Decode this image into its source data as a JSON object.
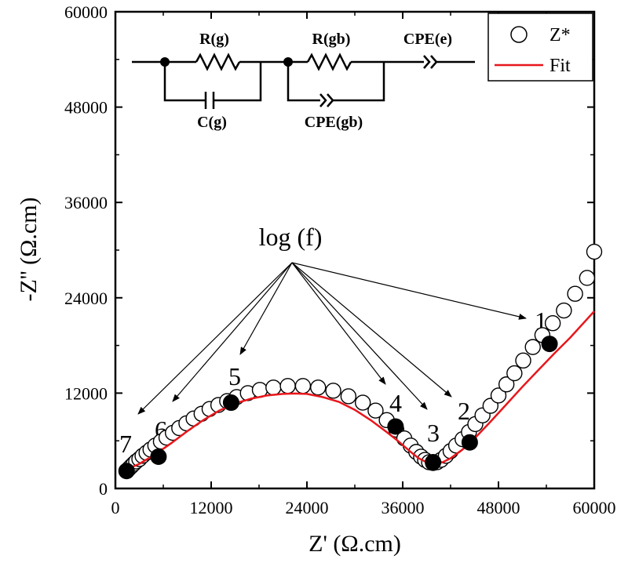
{
  "chart_data": {
    "type": "scatter",
    "xlabel": "Z' (Ω.cm)",
    "ylabel": "-Z'' (Ω.cm)",
    "xlim": [
      0,
      60000
    ],
    "ylim": [
      0,
      60000
    ],
    "xticks": [
      "0",
      "12000",
      "24000",
      "36000",
      "48000",
      "60000"
    ],
    "yticks": [
      "0",
      "12000",
      "24000",
      "36000",
      "48000",
      "60000"
    ],
    "grid": false,
    "legend": {
      "position": "top-right",
      "entries": [
        "Z*",
        "Fit"
      ]
    },
    "series": [
      {
        "name": "Z*",
        "style": "open-circles",
        "color": "#000000",
        "x": [
          1400,
          1700,
          2000,
          2300,
          2600,
          3000,
          3400,
          3900,
          4400,
          5000,
          5700,
          6400,
          7200,
          8000,
          8900,
          9800,
          10800,
          11800,
          12900,
          14000,
          15200,
          16600,
          18100,
          19800,
          21600,
          23500,
          25400,
          27300,
          29200,
          31000,
          32600,
          34000,
          35200,
          36200,
          37000,
          37700,
          38300,
          38800,
          39300,
          39800,
          40300,
          40800,
          41400,
          42000,
          42700,
          43500,
          44300,
          45100,
          46000,
          47000,
          48000,
          49000,
          50000,
          51100,
          52300,
          53500,
          54800,
          56200,
          57600,
          59100,
          60000
        ],
        "y": [
          2200,
          2500,
          2800,
          3100,
          3400,
          3700,
          4100,
          4500,
          4900,
          5400,
          5900,
          6400,
          7000,
          7600,
          8200,
          8800,
          9400,
          10000,
          10500,
          11000,
          11500,
          12000,
          12400,
          12700,
          12900,
          12900,
          12700,
          12300,
          11600,
          10800,
          9800,
          8600,
          7400,
          6300,
          5400,
          4600,
          4000,
          3600,
          3300,
          3200,
          3300,
          3600,
          4100,
          4700,
          5400,
          6200,
          7100,
          8100,
          9200,
          10400,
          11700,
          13100,
          14500,
          16100,
          17800,
          19300,
          20800,
          22400,
          24500,
          26500,
          29800
        ]
      },
      {
        "name": "Fit",
        "style": "line",
        "color": "#e8161b",
        "x": [
          1400,
          3000,
          5000,
          7000,
          9000,
          11000,
          13000,
          15000,
          17000,
          19000,
          21000,
          22500,
          24000,
          26000,
          28000,
          30000,
          32000,
          34000,
          35500,
          37000,
          38000,
          39000,
          40000,
          41000,
          42000,
          43500,
          45000,
          47000,
          49000,
          51000,
          53000,
          55000,
          57000,
          59000,
          60000
        ],
        "y": [
          2400,
          3100,
          4300,
          5700,
          7200,
          8600,
          9800,
          10700,
          11300,
          11700,
          11900,
          11950,
          11900,
          11500,
          10900,
          9900,
          8600,
          7100,
          5900,
          4600,
          3800,
          3300,
          3100,
          3300,
          3800,
          4900,
          6300,
          8400,
          10600,
          12800,
          14900,
          17000,
          19000,
          21200,
          22300
        ]
      },
      {
        "name": "",
        "style": "filled-markers",
        "color": "#000000",
        "x": [
          54400,
          44400,
          39800,
          35100,
          14500,
          5400,
          1400
        ],
        "y": [
          18200,
          5800,
          3300,
          7800,
          10800,
          4000,
          2200
        ]
      }
    ],
    "annotations": {
      "title_text": "log (f)",
      "labels": [
        "1",
        "2",
        "3",
        "4",
        "5",
        "6",
        "7"
      ]
    },
    "inset_circuit": {
      "labels": [
        "R(g)",
        "C(g)",
        "R(gb)",
        "CPE(gb)",
        "CPE(e)"
      ]
    }
  }
}
